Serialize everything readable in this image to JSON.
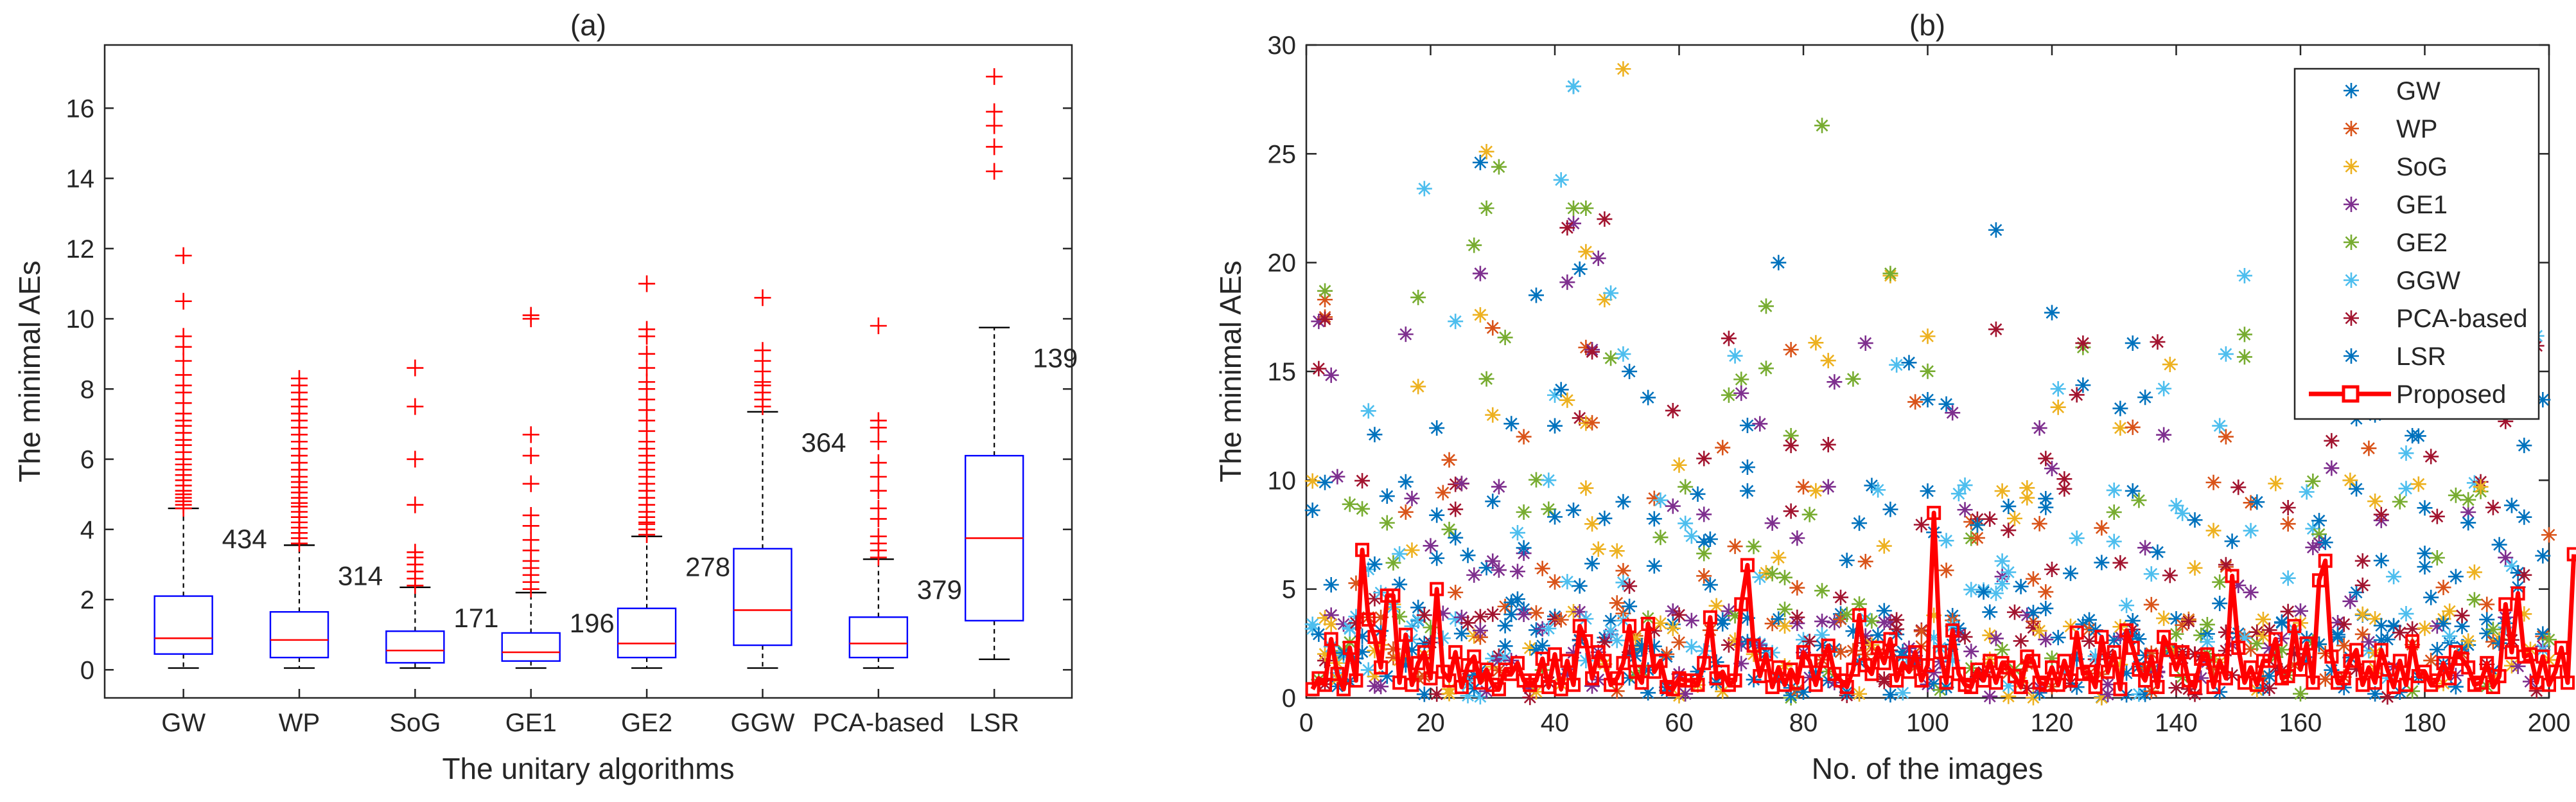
{
  "chart_data": [
    {
      "type": "box",
      "panel_label": "(a)",
      "xlabel": "The unitary algorithms",
      "ylabel": "The minimal AEs",
      "ylim": [
        -0.8,
        17.8
      ],
      "yticks": [
        0,
        2,
        4,
        6,
        8,
        10,
        12,
        14,
        16
      ],
      "categories": [
        "GW",
        "WP",
        "SoG",
        "GE1",
        "GE2",
        "GGW",
        "PCA-based",
        "LSR"
      ],
      "boxes": [
        {
          "name": "GW",
          "whisker_low": 0.05,
          "q1": 0.45,
          "median": 0.9,
          "q3": 2.1,
          "whisker_high": 4.6,
          "outlier_count": "434",
          "outliers": [
            4.6,
            4.7,
            4.8,
            4.9,
            5.0,
            5.1,
            5.25,
            5.4,
            5.55,
            5.7,
            5.85,
            6.0,
            6.2,
            6.4,
            6.55,
            6.75,
            6.95,
            7.1,
            7.3,
            7.6,
            7.9,
            8.1,
            8.4,
            8.8,
            9.2,
            9.5,
            10.5,
            11.8
          ]
        },
        {
          "name": "WP",
          "whisker_low": 0.05,
          "q1": 0.35,
          "median": 0.85,
          "q3": 1.65,
          "whisker_high": 3.55,
          "outlier_count": "314",
          "outliers": [
            3.6,
            3.75,
            3.9,
            4.05,
            4.2,
            4.35,
            4.5,
            4.65,
            4.75,
            4.9,
            5.05,
            5.2,
            5.35,
            5.5,
            5.7,
            5.9,
            6.1,
            6.3,
            6.5,
            6.7,
            6.9,
            7.1,
            7.3,
            7.5,
            7.7,
            7.9,
            8.1,
            8.3
          ]
        },
        {
          "name": "SoG",
          "whisker_low": 0.05,
          "q1": 0.2,
          "median": 0.55,
          "q3": 1.1,
          "whisker_high": 2.35,
          "outlier_count": "171",
          "outliers": [
            2.4,
            2.6,
            2.8,
            3.0,
            3.2,
            3.35,
            4.7,
            6.0,
            7.5,
            8.6
          ]
        },
        {
          "name": "GE1",
          "whisker_low": 0.05,
          "q1": 0.25,
          "median": 0.5,
          "q3": 1.05,
          "whisker_high": 2.2,
          "outlier_count": "196",
          "outliers": [
            2.3,
            2.5,
            2.7,
            2.9,
            3.1,
            3.4,
            3.7,
            4.1,
            4.4,
            5.3,
            6.1,
            6.7,
            10.0,
            10.1
          ]
        },
        {
          "name": "GE2",
          "whisker_low": 0.05,
          "q1": 0.35,
          "median": 0.75,
          "q3": 1.75,
          "whisker_high": 3.8,
          "outlier_count": "278",
          "outliers": [
            3.85,
            4.0,
            4.15,
            4.2,
            4.35,
            4.5,
            4.7,
            4.9,
            5.1,
            5.3,
            5.5,
            5.7,
            5.9,
            6.1,
            6.3,
            6.5,
            6.8,
            7.1,
            7.4,
            7.7,
            8.0,
            8.2,
            8.6,
            9.0,
            9.5,
            9.7,
            11.0
          ]
        },
        {
          "name": "GGW",
          "whisker_low": 0.05,
          "q1": 0.7,
          "median": 1.7,
          "q3": 3.45,
          "whisker_high": 7.35,
          "outlier_count": "364",
          "outliers": [
            7.5,
            7.7,
            7.9,
            8.1,
            8.2,
            8.5,
            8.8,
            9.1,
            10.6
          ]
        },
        {
          "name": "PCA-based",
          "whisker_low": 0.05,
          "q1": 0.35,
          "median": 0.75,
          "q3": 1.5,
          "whisker_high": 3.15,
          "outlier_count": "379",
          "outliers": [
            3.2,
            3.4,
            3.6,
            3.8,
            4.3,
            4.6,
            5.1,
            5.5,
            5.9,
            6.5,
            6.9,
            7.1,
            9.8
          ]
        },
        {
          "name": "LSR",
          "whisker_low": 0.3,
          "q1": 1.4,
          "median": 3.75,
          "q3": 6.1,
          "whisker_high": 9.75,
          "outlier_count": "139",
          "outliers": [
            14.2,
            14.9,
            15.5,
            15.9,
            16.9
          ]
        }
      ],
      "colors": {
        "box": "#0000ff",
        "median": "#ff0000",
        "outlier": "#ff0000",
        "whisker": "#000000"
      }
    },
    {
      "type": "scatter",
      "panel_label": "(b)",
      "xlabel": "No. of the images",
      "ylabel": "The minimal AEs",
      "xlim": [
        0,
        200
      ],
      "ylim": [
        0,
        30
      ],
      "xticks": [
        0,
        20,
        40,
        60,
        80,
        100,
        120,
        140,
        160,
        180,
        200
      ],
      "yticks": [
        0,
        5,
        10,
        15,
        20,
        25,
        30
      ],
      "legend_position": "top-right",
      "series": [
        {
          "name": "GW",
          "color": "#0072bd",
          "marker": "asterisk",
          "highlights": [
            [
              28,
              24.6
            ],
            [
              43,
              28.1
            ],
            [
              37,
              18.5
            ],
            [
              111,
              21.5
            ],
            [
              76,
              20
            ],
            [
              33,
              12.6
            ],
            [
              40,
              12.5
            ],
            [
              3,
              9.9
            ],
            [
              52,
              15
            ],
            [
              120,
              17.7
            ],
            [
              133,
              16.3
            ],
            [
              11,
              12.1
            ],
            [
              21,
              12.4
            ],
            [
              71,
              10.6
            ]
          ]
        },
        {
          "name": "WP",
          "color": "#d95319",
          "marker": "asterisk",
          "highlights": [
            [
              3,
              18.3
            ],
            [
              3,
              17.5
            ],
            [
              45,
              16.1
            ],
            [
              35,
              12
            ],
            [
              30,
              17
            ],
            [
              67,
              11.5
            ],
            [
              78,
              16
            ],
            [
              98,
              13.6
            ],
            [
              148,
              12
            ]
          ]
        },
        {
          "name": "SoG",
          "color": "#edb120",
          "marker": "asterisk",
          "highlights": [
            [
              51,
              28.9
            ],
            [
              29,
              25.1
            ],
            [
              45,
              20.5
            ],
            [
              48,
              18.3
            ],
            [
              28,
              17.6
            ],
            [
              30,
              13
            ],
            [
              94,
              19.4
            ],
            [
              84,
              15.5
            ]
          ]
        },
        {
          "name": "GE1",
          "color": "#7e2f8e",
          "marker": "asterisk",
          "highlights": [
            [
              2,
              17.3
            ],
            [
              28,
              19.5
            ],
            [
              43,
              21.8
            ],
            [
              42,
              19.1
            ],
            [
              46,
              16
            ],
            [
              47,
              20.2
            ],
            [
              70,
              14
            ],
            [
              90,
              16.3
            ],
            [
              104,
              13.1
            ],
            [
              118,
              12.4
            ]
          ]
        },
        {
          "name": "GE2",
          "color": "#77ac30",
          "marker": "asterisk",
          "highlights": [
            [
              3,
              18.7
            ],
            [
              83,
              26.3
            ],
            [
              31,
              24.4
            ],
            [
              29,
              22.5
            ],
            [
              43,
              22.5
            ],
            [
              45,
              22.5
            ],
            [
              27,
              20.8
            ],
            [
              18,
              18.4
            ],
            [
              74,
              18
            ],
            [
              94,
              19.5
            ],
            [
              151,
              16.7
            ]
          ]
        },
        {
          "name": "GGW",
          "color": "#4dbeee",
          "marker": "asterisk",
          "highlights": [
            [
              43,
              28.1
            ],
            [
              19,
              23.4
            ],
            [
              41,
              23.8
            ],
            [
              49,
              18.6
            ],
            [
              51,
              15.8
            ],
            [
              24,
              17.3
            ],
            [
              95,
              15.3
            ],
            [
              151,
              19.4
            ],
            [
              148,
              15.8
            ],
            [
              39,
              10
            ]
          ]
        },
        {
          "name": "PCA-based",
          "color": "#a2142f",
          "marker": "asterisk",
          "highlights": [
            [
              3,
              17.4
            ],
            [
              48,
              22
            ],
            [
              42,
              21.6
            ],
            [
              46,
              15.9
            ],
            [
              59,
              13.2
            ],
            [
              64,
              11
            ],
            [
              78,
              11.6
            ],
            [
              125,
              16.3
            ],
            [
              119,
              11
            ]
          ]
        },
        {
          "name": "LSR",
          "color": "#0072bd",
          "marker": "asterisk",
          "highlights": [
            [
              44,
              19.7
            ],
            [
              55,
              13.8
            ],
            [
              103,
              13.5
            ],
            [
              113,
              8.8
            ],
            [
              131,
              13.3
            ],
            [
              153,
              9
            ],
            [
              172,
              13
            ],
            [
              196,
              11.6
            ],
            [
              199,
              13.7
            ]
          ]
        }
      ],
      "proposed": {
        "name": "Proposed",
        "color": "#ff0000",
        "marker": "square-line",
        "values": [
          0.4,
          0.9,
          0.6,
          2.7,
          1.1,
          0.4,
          2.3,
          0.8,
          6.8,
          3.6,
          2.8,
          1.4,
          4.7,
          4.7,
          0.7,
          2.9,
          0.6,
          1.6,
          2.1,
          0.9,
          5.0,
          1.2,
          0.8,
          2.1,
          0.5,
          1.5,
          1.9,
          0.7,
          1.3,
          0.6,
          0.4,
          1.3,
          1.1,
          1.6,
          0.8,
          0.6,
          0.8,
          1.8,
          0.5,
          2.0,
          0.4,
          1.7,
          0.6,
          3.3,
          2.6,
          0.9,
          2.1,
          1.7,
          0.6,
          0.9,
          1.6,
          3.3,
          1.2,
          0.7,
          3.4,
          1.2,
          1.7,
          0.5,
          0.4,
          0.9,
          0.8,
          0.8,
          0.6,
          1.6,
          3.7,
          0.9,
          1.2,
          0.6,
          0.8,
          4.3,
          6.1,
          2.4,
          1.0,
          2.0,
          0.5,
          1.4,
          0.6,
          1.3,
          0.7,
          2.1,
          1.7,
          0.6,
          1.7,
          2.4,
          1.1,
          0.8,
          0.5,
          1.3,
          3.8,
          1.5,
          1.1,
          2.3,
          1.6,
          2.7,
          0.8,
          1.6,
          1.2,
          2.1,
          0.8,
          1.5,
          8.5,
          2.1,
          0.7,
          3.1,
          1.1,
          0.6,
          0.5,
          1.3,
          0.8,
          1.7,
          0.7,
          1.6,
          1.4,
          1.0,
          0.5,
          1.9,
          1.7,
          0.7,
          0.6,
          1.4,
          0.6,
          1.7,
          0.8,
          3.0,
          1.1,
          1.2,
          0.5,
          2.8,
          1.2,
          2.1,
          0.4,
          3.1,
          2.3,
          1.3,
          0.8,
          1.9,
          0.5,
          2.8,
          2.2,
          1.3,
          2.1,
          0.8,
          0.5,
          1.8,
          2.0,
          0.5,
          1.7,
          0.9,
          5.6,
          2.3,
          0.7,
          1.4,
          0.6,
          1.7,
          1.7,
          2.7,
          0.9,
          1.0,
          3.3,
          1.3,
          2.5,
          0.7,
          5.4,
          6.3,
          1.9,
          0.7,
          0.9,
          1.7,
          2.2,
          0.6,
          1.4,
          0.7,
          2.2,
          1.3,
          0.5,
          1.7,
          0.6,
          2.6,
          1.0,
          1.2,
          0.6,
          0.8,
          1.6,
          0.9,
          2.1,
          1.8,
          1.4,
          0.6,
          0.7,
          1.6,
          0.5,
          1.0,
          4.3,
          2.1,
          4.8,
          1.9,
          2.0,
          0.7,
          1.9,
          0.6,
          1.2,
          2.3,
          0.7,
          6.6
        ]
      }
    }
  ]
}
